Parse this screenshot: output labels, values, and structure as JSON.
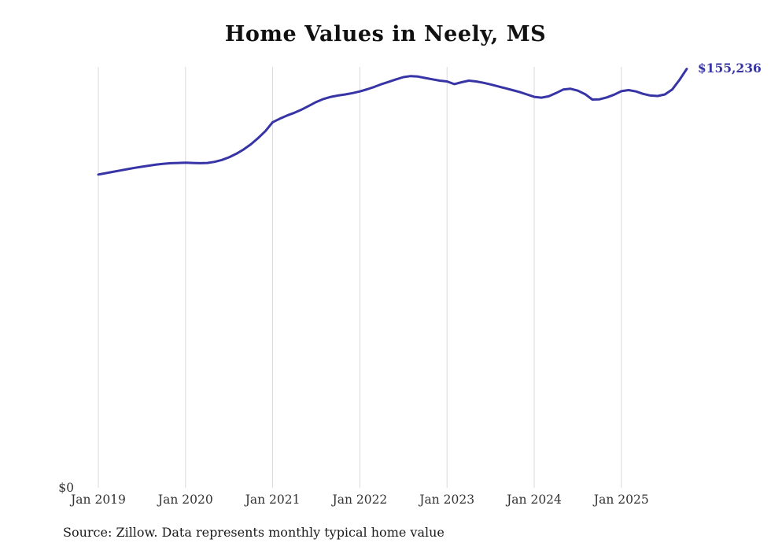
{
  "chart_data": {
    "type": "line",
    "title": "Home Values in Neely, MS",
    "end_label": "$155,236",
    "source": "Source: Zillow. Data represents monthly typical home value",
    "x_tick_labels": [
      "Jan 2019",
      "Jan 2020",
      "Jan 2021",
      "Jan 2022",
      "Jan 2023",
      "Jan 2024",
      "Jan 2025"
    ],
    "y_tick_labels": [
      "$0"
    ],
    "ylim": [
      0,
      156000
    ],
    "x_start": "Jan 2019",
    "x_interval": "monthly",
    "grid": "vertical-only",
    "legend": "none",
    "line_color": "#3734a6",
    "series": [
      {
        "name": "Typical home value",
        "values": [
          116100,
          116600,
          117100,
          117600,
          118100,
          118600,
          119000,
          119400,
          119800,
          120100,
          120300,
          120400,
          120500,
          120400,
          120300,
          120400,
          120800,
          121500,
          122500,
          123800,
          125400,
          127300,
          129600,
          132200,
          135500,
          136800,
          138000,
          139000,
          140200,
          141600,
          143000,
          144100,
          144900,
          145400,
          145800,
          146300,
          146900,
          147700,
          148600,
          149600,
          150500,
          151400,
          152200,
          152600,
          152400,
          151900,
          151400,
          150900,
          150600,
          149600,
          150300,
          150900,
          150600,
          150100,
          149500,
          148800,
          148100,
          147400,
          146700,
          145800,
          144900,
          144600,
          145100,
          146300,
          147600,
          147900,
          147200,
          145900,
          143900,
          144000,
          144700,
          145700,
          147000,
          147400,
          146900,
          146000,
          145400,
          145200,
          145800,
          147600,
          151200,
          155236
        ]
      }
    ]
  }
}
